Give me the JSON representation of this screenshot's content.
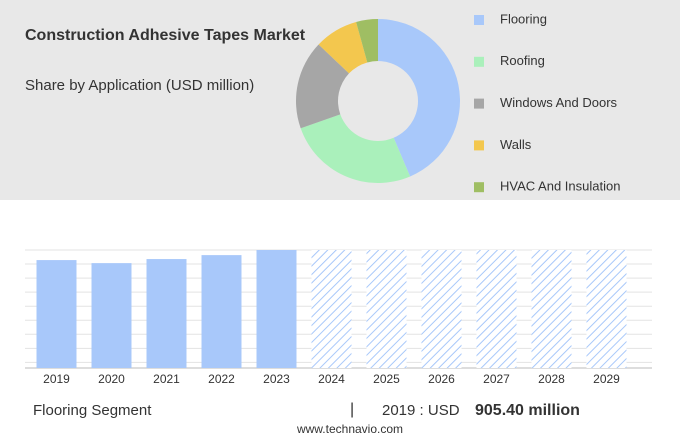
{
  "chart_data": [
    {
      "type": "pie",
      "title": "Construction Adhesive Tapes Market",
      "subtitle": "Share by Application (USD million)",
      "donut": true,
      "categories": [
        "Flooring",
        "Roofing",
        "Windows And Doors",
        "Walls",
        "HVAC And Insulation"
      ],
      "values": [
        43.6,
        26,
        17.5,
        8.6,
        4.3
      ],
      "colors": [
        "#a8c8fa",
        "#aaf0bb",
        "#a6a6a6",
        "#f3c74e",
        "#9fbe63"
      ]
    },
    {
      "type": "bar",
      "categories": [
        "2019",
        "2020",
        "2021",
        "2022",
        "2023",
        "2024",
        "2025",
        "2026",
        "2027",
        "2028",
        "2029"
      ],
      "values": [
        905.4,
        880,
        914,
        947,
        990,
        null,
        null,
        null,
        null,
        null,
        null
      ],
      "color": "#a8c8fa",
      "ylim": [
        0,
        990
      ],
      "segment": "Flooring Segment",
      "highlight_label": "2019 : USD",
      "highlight_value": "905.40 million",
      "source": "www.technavio.com"
    }
  ]
}
